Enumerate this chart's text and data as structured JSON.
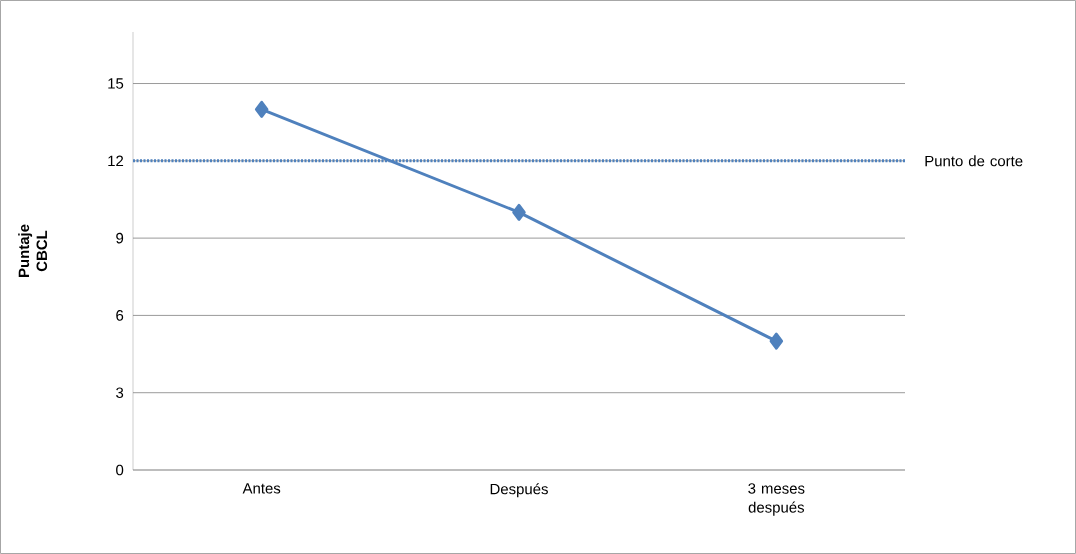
{
  "chart_data": {
    "type": "line",
    "ylabel": "Puntaje CBCL",
    "categories": [
      "Antes",
      "Después",
      "3 meses después"
    ],
    "series": [
      {
        "color": "#4f81bd",
        "values": [
          14,
          10,
          5
        ]
      }
    ],
    "ylim": [
      0,
      17
    ],
    "yticks": [
      0,
      3,
      6,
      9,
      12,
      15
    ],
    "grid": "y",
    "marker": "diamond",
    "ref_lines": [
      {
        "axis": "y",
        "value": 12,
        "label": "Punto de corte",
        "color": "#4f81bd",
        "line_style": "dotted"
      }
    ]
  }
}
